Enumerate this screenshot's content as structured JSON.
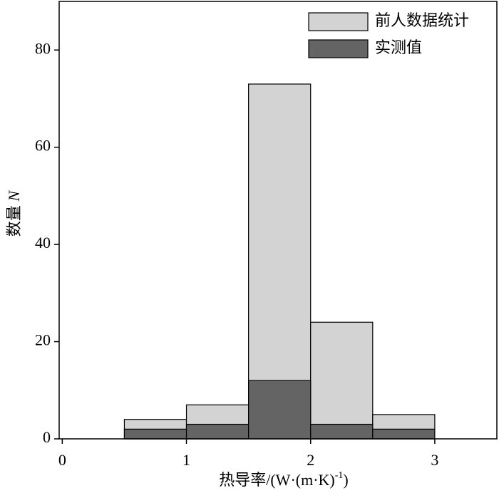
{
  "chart_data": {
    "type": "histogram",
    "x_label": {
      "text": "热导率/(W·(m·K)",
      "superscript": "-1",
      "suffix": ")"
    },
    "y_label": {
      "text": "数量",
      "italic": "N"
    },
    "bins": [
      0.5,
      1,
      1.5,
      2,
      2.5,
      3
    ],
    "series": [
      {
        "name": "前人数据统计",
        "color": "#d3d3d3",
        "values": [
          4,
          7,
          73,
          24,
          5
        ]
      },
      {
        "name": "实测值",
        "color": "#646464",
        "values": [
          2,
          3,
          12,
          3,
          2
        ]
      }
    ],
    "xlim": [
      -0.025,
      3.5
    ],
    "xticks": [
      0,
      1,
      2,
      3
    ],
    "ylim": [
      0,
      90
    ],
    "yticks": [
      0,
      20,
      40,
      60,
      80
    ],
    "legend": "upper right",
    "grid": false
  }
}
